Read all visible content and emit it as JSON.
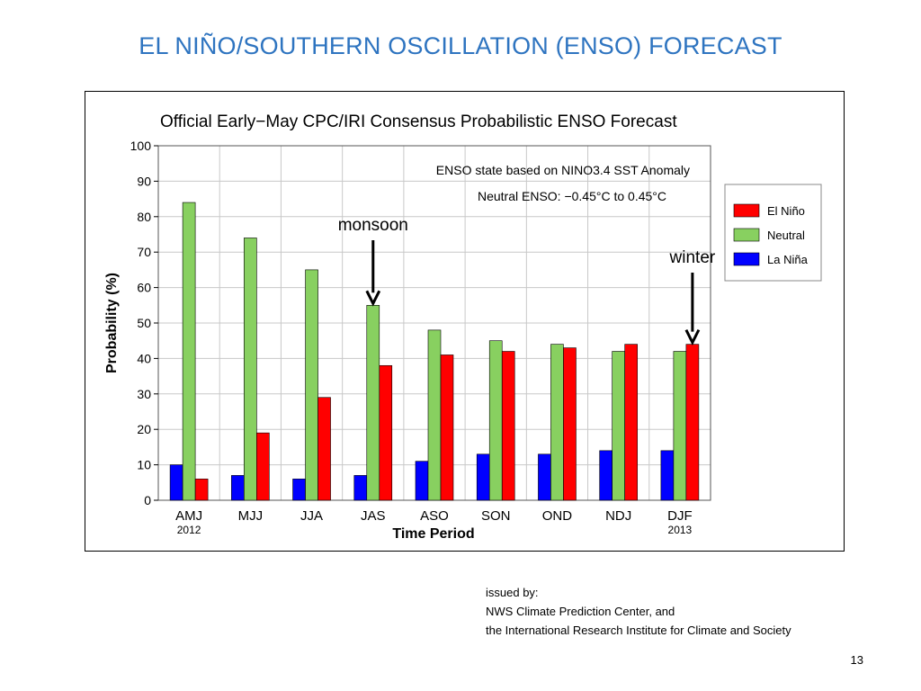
{
  "slide": {
    "title": "EL NIÑO/SOUTHERN OSCILLATION (ENSO) FORECAST",
    "issued_by": [
      "issued by:",
      "NWS Climate Prediction Center, and",
      "the International Research Institute for Climate and Society"
    ],
    "page_number": "13"
  },
  "chart_data": {
    "type": "bar",
    "title": "Official Early−May CPC/IRI Consensus Probabilistic ENSO Forecast",
    "subtitle_lines": [
      "ENSO state based on NINO3.4 SST Anomaly",
      "Neutral ENSO: −0.45°C to 0.45°C"
    ],
    "xlabel": "Time Period",
    "ylabel": "Probability (%)",
    "ylim": [
      0,
      100
    ],
    "yticks": [
      0,
      10,
      20,
      30,
      40,
      50,
      60,
      70,
      80,
      90,
      100
    ],
    "categories": [
      "AMJ",
      "MJJ",
      "JJA",
      "JAS",
      "ASO",
      "SON",
      "OND",
      "NDJ",
      "DJF"
    ],
    "category_sublabels": {
      "AMJ": "2012",
      "DJF": "2013"
    },
    "series": [
      {
        "name": "La Niña",
        "color": "#0000FF",
        "values": [
          10,
          7,
          6,
          7,
          11,
          13,
          13,
          14,
          14
        ]
      },
      {
        "name": "Neutral",
        "color": "#88D060",
        "values": [
          84,
          74,
          65,
          55,
          48,
          45,
          44,
          42,
          42
        ]
      },
      {
        "name": "El Niño",
        "color": "#FF0000",
        "values": [
          6,
          19,
          29,
          38,
          41,
          42,
          43,
          44,
          44
        ]
      }
    ],
    "legend_order": [
      "El Niño",
      "Neutral",
      "La Niña"
    ],
    "legend_position": "right",
    "grid": true,
    "annotations": [
      {
        "text": "monsoon",
        "category": "JAS"
      },
      {
        "text": "winter",
        "category": "DJF"
      }
    ]
  }
}
